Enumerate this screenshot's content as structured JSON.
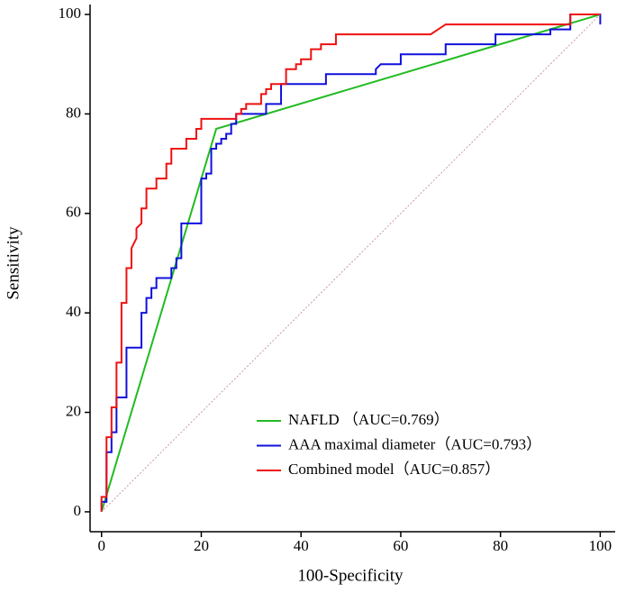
{
  "chart_data": {
    "type": "line",
    "xlabel": "100-Specificity",
    "ylabel": "Sensitivity",
    "xlim": [
      -2.3,
      103
    ],
    "ylim": [
      -4,
      102
    ],
    "xticks": [
      0,
      20,
      40,
      60,
      80,
      100
    ],
    "yticks": [
      0,
      20,
      40,
      60,
      80,
      100
    ],
    "legend": "lower right",
    "series": [
      {
        "name": "NAFLD （AUC=0.769）",
        "color": "#22bb22",
        "x": [
          0,
          23,
          100
        ],
        "values": [
          0,
          77,
          100
        ]
      },
      {
        "name": "AAA maximal diameter（AUC=0.793）",
        "color": "#1010dd",
        "x": [
          0,
          0,
          1,
          1,
          2,
          2,
          3,
          3,
          5,
          5,
          8,
          8,
          9,
          9,
          10,
          10,
          11,
          11,
          14,
          14,
          15,
          15,
          16,
          16,
          20,
          20,
          21,
          21,
          22,
          22,
          23,
          23,
          24,
          24,
          25,
          25,
          26,
          26,
          27,
          27,
          33,
          33,
          36,
          36,
          45,
          45,
          55,
          55,
          56,
          60,
          60,
          69,
          69,
          79,
          79,
          90,
          90,
          94,
          94,
          100,
          100
        ],
        "values": [
          0,
          2,
          2,
          12,
          12,
          16,
          16,
          23,
          23,
          33,
          33,
          40,
          40,
          43,
          43,
          45,
          45,
          47,
          47,
          49,
          49,
          51,
          51,
          58,
          58,
          67,
          67,
          68,
          68,
          73,
          73,
          74,
          74,
          75,
          75,
          76,
          76,
          78,
          78,
          80,
          80,
          82,
          82,
          86,
          86,
          88,
          88,
          89,
          90,
          90,
          92,
          92,
          94,
          94,
          96,
          96,
          97,
          97,
          100,
          100,
          98
        ]
      },
      {
        "name": "Combined model（AUC=0.857）",
        "color": "#ee1111",
        "x": [
          0,
          0,
          1,
          1,
          2,
          2,
          3,
          3,
          4,
          4,
          5,
          5,
          6,
          6,
          7,
          7,
          8,
          8,
          9,
          9,
          11,
          11,
          13,
          13,
          14,
          14,
          17,
          17,
          19,
          19,
          20,
          20,
          27,
          27,
          28,
          28,
          29,
          29,
          32,
          32,
          33,
          33,
          34,
          34,
          37,
          37,
          39,
          39,
          40,
          40,
          42,
          42,
          44,
          44,
          47,
          47,
          66,
          69,
          94,
          94,
          100
        ],
        "values": [
          0,
          3,
          3,
          15,
          15,
          21,
          21,
          30,
          30,
          42,
          42,
          49,
          49,
          53,
          55,
          57,
          58,
          61,
          61,
          65,
          65,
          67,
          67,
          70,
          70,
          73,
          73,
          75,
          75,
          77,
          77,
          79,
          79,
          80,
          80,
          81,
          81,
          82,
          82,
          84,
          84,
          85,
          85,
          86,
          86,
          89,
          89,
          90,
          90,
          91,
          91,
          93,
          93,
          94,
          94,
          96,
          96,
          98,
          98,
          100,
          100
        ]
      },
      {
        "color": "#c08080",
        "dashed": true,
        "x": [
          0,
          100
        ],
        "values": [
          0,
          100
        ]
      }
    ]
  }
}
